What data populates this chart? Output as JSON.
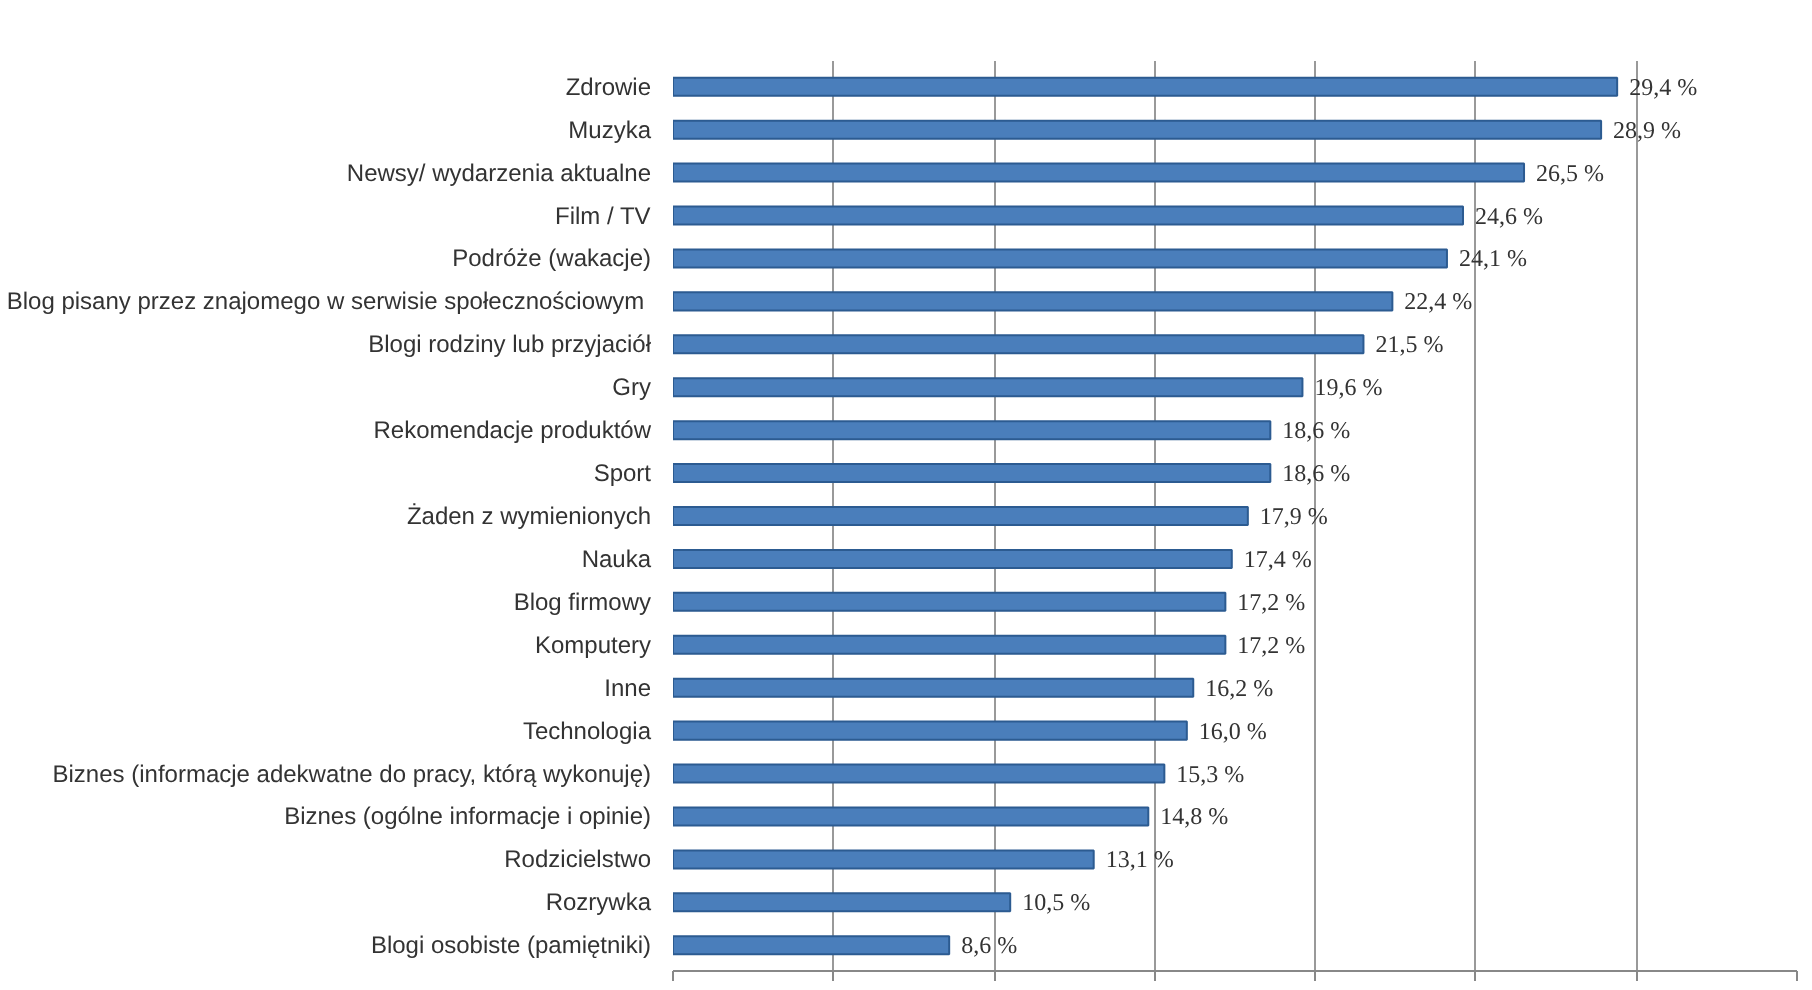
{
  "chart_data": {
    "type": "bar",
    "orientation": "horizontal",
    "categories": [
      "Zdrowie",
      "Muzyka",
      "Newsy/ wydarzenia aktualne",
      "Film / TV",
      "Podróże (wakacje)",
      "Blog pisany przez znajomego  w serwisie społecznościowym",
      "Blogi rodziny lub przyjaciół",
      "Gry",
      "Rekomendacje produktów",
      "Sport",
      "Żaden z wymienionych",
      "Nauka",
      "Blog firmowy",
      "Komputery",
      "Inne",
      "Technologia",
      "Biznes (informacje adekwatne do pracy, którą wykonuję)",
      "Biznes (ogólne informacje i opinie)",
      "Rodzicielstwo",
      "Rozrywka",
      "Blogi osobiste (pamiętniki)"
    ],
    "values": [
      29.4,
      28.9,
      26.5,
      24.6,
      24.1,
      22.4,
      21.5,
      19.6,
      18.6,
      18.6,
      17.9,
      17.4,
      17.2,
      17.2,
      16.2,
      16.0,
      15.3,
      14.8,
      13.1,
      10.5,
      8.6
    ],
    "value_labels": [
      "29,4 %",
      "28,9 %",
      "26,5 %",
      "24,6 %",
      "24,1 %",
      "22,4 %",
      "21,5 %",
      "19,6 %",
      "18,6 %",
      "18,6 %",
      "17,9 %",
      "17,4 %",
      "17,2 %",
      "17,2 %",
      "16,2 %",
      "16,0 %",
      "15,3 %",
      "14,8 %",
      "13,1 %",
      "10,5 %",
      "8,6 %"
    ],
    "color": "#4a7ebb",
    "xlim": [
      0,
      35
    ],
    "xticks": [
      {
        "value": 0,
        "label": null
      },
      {
        "value": 5,
        "label": null
      },
      {
        "value": 10,
        "label": null
      },
      {
        "value": 15,
        "label": null
      },
      {
        "value": 20,
        "label": null
      },
      {
        "value": 25,
        "label": null
      },
      {
        "value": 30,
        "label": null
      },
      {
        "value": 35,
        "label": null
      }
    ],
    "grid": "x",
    "tick_labels": "y"
  }
}
